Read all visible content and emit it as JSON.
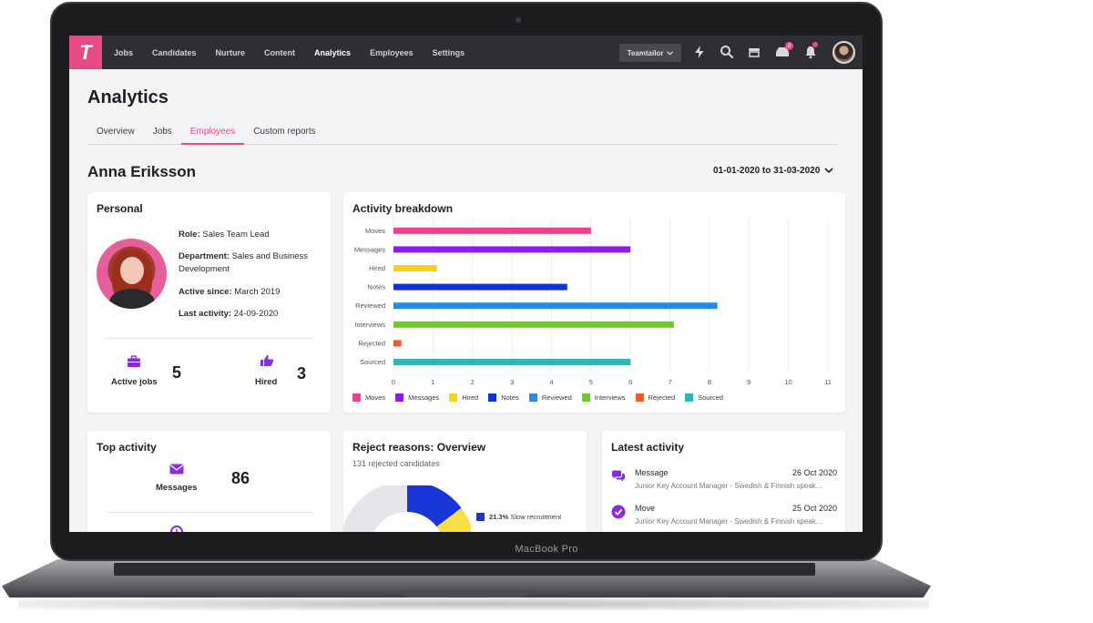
{
  "device": {
    "label": "MacBook Pro"
  },
  "topbar": {
    "logo": "T",
    "nav": [
      {
        "label": "Jobs",
        "active": false
      },
      {
        "label": "Candidates",
        "active": false
      },
      {
        "label": "Nurture",
        "active": false
      },
      {
        "label": "Content",
        "active": false
      },
      {
        "label": "Analytics",
        "active": true
      },
      {
        "label": "Employees",
        "active": false
      },
      {
        "label": "Settings",
        "active": false
      }
    ],
    "company": "Teamtailor",
    "inbox_badge": "8"
  },
  "page": {
    "title": "Analytics",
    "tabs": [
      {
        "label": "Overview",
        "active": false
      },
      {
        "label": "Jobs",
        "active": false
      },
      {
        "label": "Employees",
        "active": true
      },
      {
        "label": "Custom reports",
        "active": false
      }
    ],
    "employee_name": "Anna Eriksson",
    "date_range": "01-01-2020 to 31-03-2020"
  },
  "personal": {
    "title": "Personal",
    "role_label": "Role:",
    "role": "Sales Team Lead",
    "department_label": "Department:",
    "department": "Sales and Business Development",
    "active_since_label": "Active since:",
    "active_since": "March 2019",
    "last_activity_label": "Last activity:",
    "last_activity": "24-09-2020",
    "active_jobs_label": "Active jobs",
    "active_jobs": "5",
    "hired_label": "Hired",
    "hired": "3"
  },
  "activity": {
    "title": "Activity breakdown",
    "chart_data": {
      "type": "bar",
      "orientation": "horizontal",
      "categories": [
        "Moves",
        "Messages",
        "Hired",
        "Notes",
        "Reviewed",
        "Interviews",
        "Rejected",
        "Sourced"
      ],
      "values": [
        5,
        6,
        1.1,
        4.4,
        8.2,
        7.1,
        0.2,
        6
      ],
      "colors": [
        "#ef3e8a",
        "#8a1ee8",
        "#f8d21e",
        "#1431d4",
        "#2a8ae0",
        "#6fcc28",
        "#ef5a2a",
        "#2eb5b5"
      ],
      "xlim": [
        0,
        11
      ],
      "x_ticks": [
        "0",
        "1",
        "2",
        "3",
        "4",
        "5",
        "6",
        "7",
        "8",
        "9",
        "10",
        "11"
      ],
      "grid": true,
      "legend": "bottom"
    }
  },
  "top_activity": {
    "title": "Top activity",
    "label": "Messages",
    "value": "86"
  },
  "reject": {
    "title": "Reject reasons: Overview",
    "subtitle": "131 rejected candidates",
    "legend_value": "21.3%",
    "legend_label": "Slow recruitment"
  },
  "latest": {
    "title": "Latest activity",
    "items": [
      {
        "type": "Message",
        "date": "26 Oct 2020",
        "desc": "Junior Key Account Manager - Swedish & Finnish speak..."
      },
      {
        "type": "Move",
        "date": "25 Oct 2020",
        "desc": "Junior Key Account Manager - Swedish & Finnish speak..."
      }
    ]
  }
}
